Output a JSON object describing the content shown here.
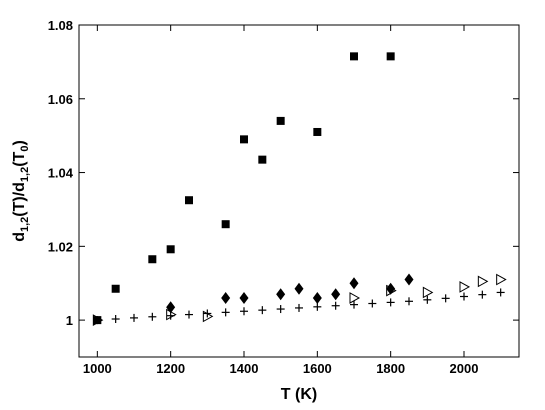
{
  "chart_data": {
    "type": "scatter",
    "xlabel": "T (K)",
    "ylabel": {
      "parts": [
        "d",
        "1,2",
        "(T)/d",
        "1,2",
        "(T",
        "0",
        ")"
      ],
      "text": "d1,2(T)/d1,2(T0)"
    },
    "xlim": [
      950,
      2150
    ],
    "ylim": [
      0.99,
      1.08
    ],
    "xticks": [
      1000,
      1200,
      1400,
      1600,
      1800,
      2000
    ],
    "yticks": [
      1,
      1.02,
      1.04,
      1.06,
      1.08
    ],
    "ytick_labels": [
      "1",
      "1.02",
      "1.04",
      "1.06",
      "1.08"
    ],
    "grid": false,
    "series": [
      {
        "marker": "square",
        "x": [
          1000,
          1050,
          1150,
          1200,
          1250,
          1350,
          1400,
          1450,
          1500,
          1600,
          1700,
          1800
        ],
        "y": [
          1.0,
          1.0085,
          1.0165,
          1.0192,
          1.0325,
          1.026,
          1.049,
          1.0435,
          1.054,
          1.051,
          1.0715,
          1.0715
        ]
      },
      {
        "marker": "diamond",
        "x": [
          1200,
          1350,
          1400,
          1500,
          1550,
          1600,
          1650,
          1700,
          1800,
          1850
        ],
        "y": [
          1.0035,
          1.006,
          1.006,
          1.007,
          1.0085,
          1.006,
          1.007,
          1.01,
          1.0085,
          1.011
        ]
      },
      {
        "marker": "triangle-right",
        "x": [
          1000,
          1200,
          1300,
          1700,
          1800,
          1900,
          2000,
          2050,
          2100
        ],
        "y": [
          1.0,
          1.0015,
          1.001,
          1.006,
          1.008,
          1.0075,
          1.009,
          1.0105,
          1.011
        ]
      },
      {
        "marker": "plus",
        "x": [
          1000,
          1050,
          1100,
          1150,
          1200,
          1250,
          1300,
          1350,
          1400,
          1450,
          1500,
          1550,
          1600,
          1650,
          1700,
          1750,
          1800,
          1850,
          1900,
          1950,
          2000,
          2050,
          2100
        ],
        "y": [
          1.0,
          1.0003,
          1.0006,
          1.0009,
          1.0012,
          1.0015,
          1.0018,
          1.0021,
          1.0024,
          1.0027,
          1.003,
          1.0033,
          1.0036,
          1.0039,
          1.0042,
          1.0045,
          1.0048,
          1.0051,
          1.0055,
          1.0059,
          1.0064,
          1.0069,
          1.0075
        ]
      }
    ]
  }
}
